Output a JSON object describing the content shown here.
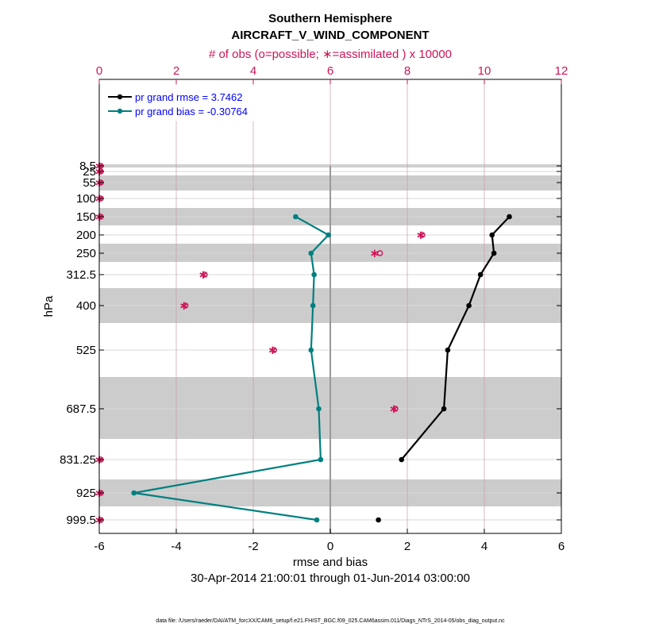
{
  "title_line1": "Southern Hemisphere",
  "title_line2": "AIRCRAFT_V_WIND_COMPONENT",
  "top_axis_label": "# of obs (o=possible; ∗=assimilated ) x 10000",
  "x_label": "rmse and bias",
  "y_label": "hPa",
  "date_range": "30-Apr-2014 21:00:01 through 01-Jun-2014 03:00:00",
  "footer": "data file: /Users/raeder/DAI/ATM_forcXX/CAM6_setup/f.e21.FHIST_BGC.f09_025.CAM6assim.011/Diags_NTrS_2014-05/obs_diag_output.nc",
  "colors": {
    "rmse": "#000000",
    "bias": "#00807f",
    "obs": "#d01458",
    "band": "#cccccc",
    "legend_text": "#0000ff"
  },
  "chart_data": {
    "type": "line",
    "x_range": [
      -6,
      6
    ],
    "x_ticks": [
      "-6",
      "-4",
      "-2",
      "0",
      "2",
      "4",
      "6"
    ],
    "top_x_range": [
      0,
      12
    ],
    "top_x_ticks": [
      "0",
      "2",
      "4",
      "6",
      "8",
      "10",
      "12"
    ],
    "levels": [
      8.5,
      25,
      55,
      100,
      150,
      200,
      250,
      312.5,
      400,
      525,
      687.5,
      831.25,
      925,
      999.5
    ],
    "level_labels": [
      "8.5",
      "25",
      "55",
      "100",
      "150",
      "200",
      "250",
      "312.5",
      "400",
      "525",
      "687.5",
      "831.25",
      "925",
      "999.5"
    ],
    "series": [
      {
        "name": "pr grand rmse = 3.7462",
        "key": "rmse",
        "values": [
          null,
          null,
          null,
          null,
          4.65,
          4.2,
          4.25,
          3.9,
          3.6,
          3.05,
          2.95,
          1.85,
          null,
          1.25
        ]
      },
      {
        "name": "pr grand bias = -0.30764",
        "key": "bias",
        "values": [
          null,
          null,
          null,
          null,
          -0.9,
          -0.05,
          -0.5,
          -0.42,
          -0.45,
          -0.5,
          -0.3,
          -0.25,
          -5.1,
          -0.35
        ]
      }
    ],
    "obs_possible": [
      0,
      0,
      0,
      0,
      0,
      8.35,
      7.25,
      2.7,
      2.2,
      4.5,
      7.65,
      0,
      0,
      0
    ],
    "obs_assimilated": [
      0,
      0,
      0,
      0,
      0,
      8.35,
      7.15,
      2.7,
      2.2,
      4.5,
      7.65,
      0,
      0,
      0
    ]
  }
}
